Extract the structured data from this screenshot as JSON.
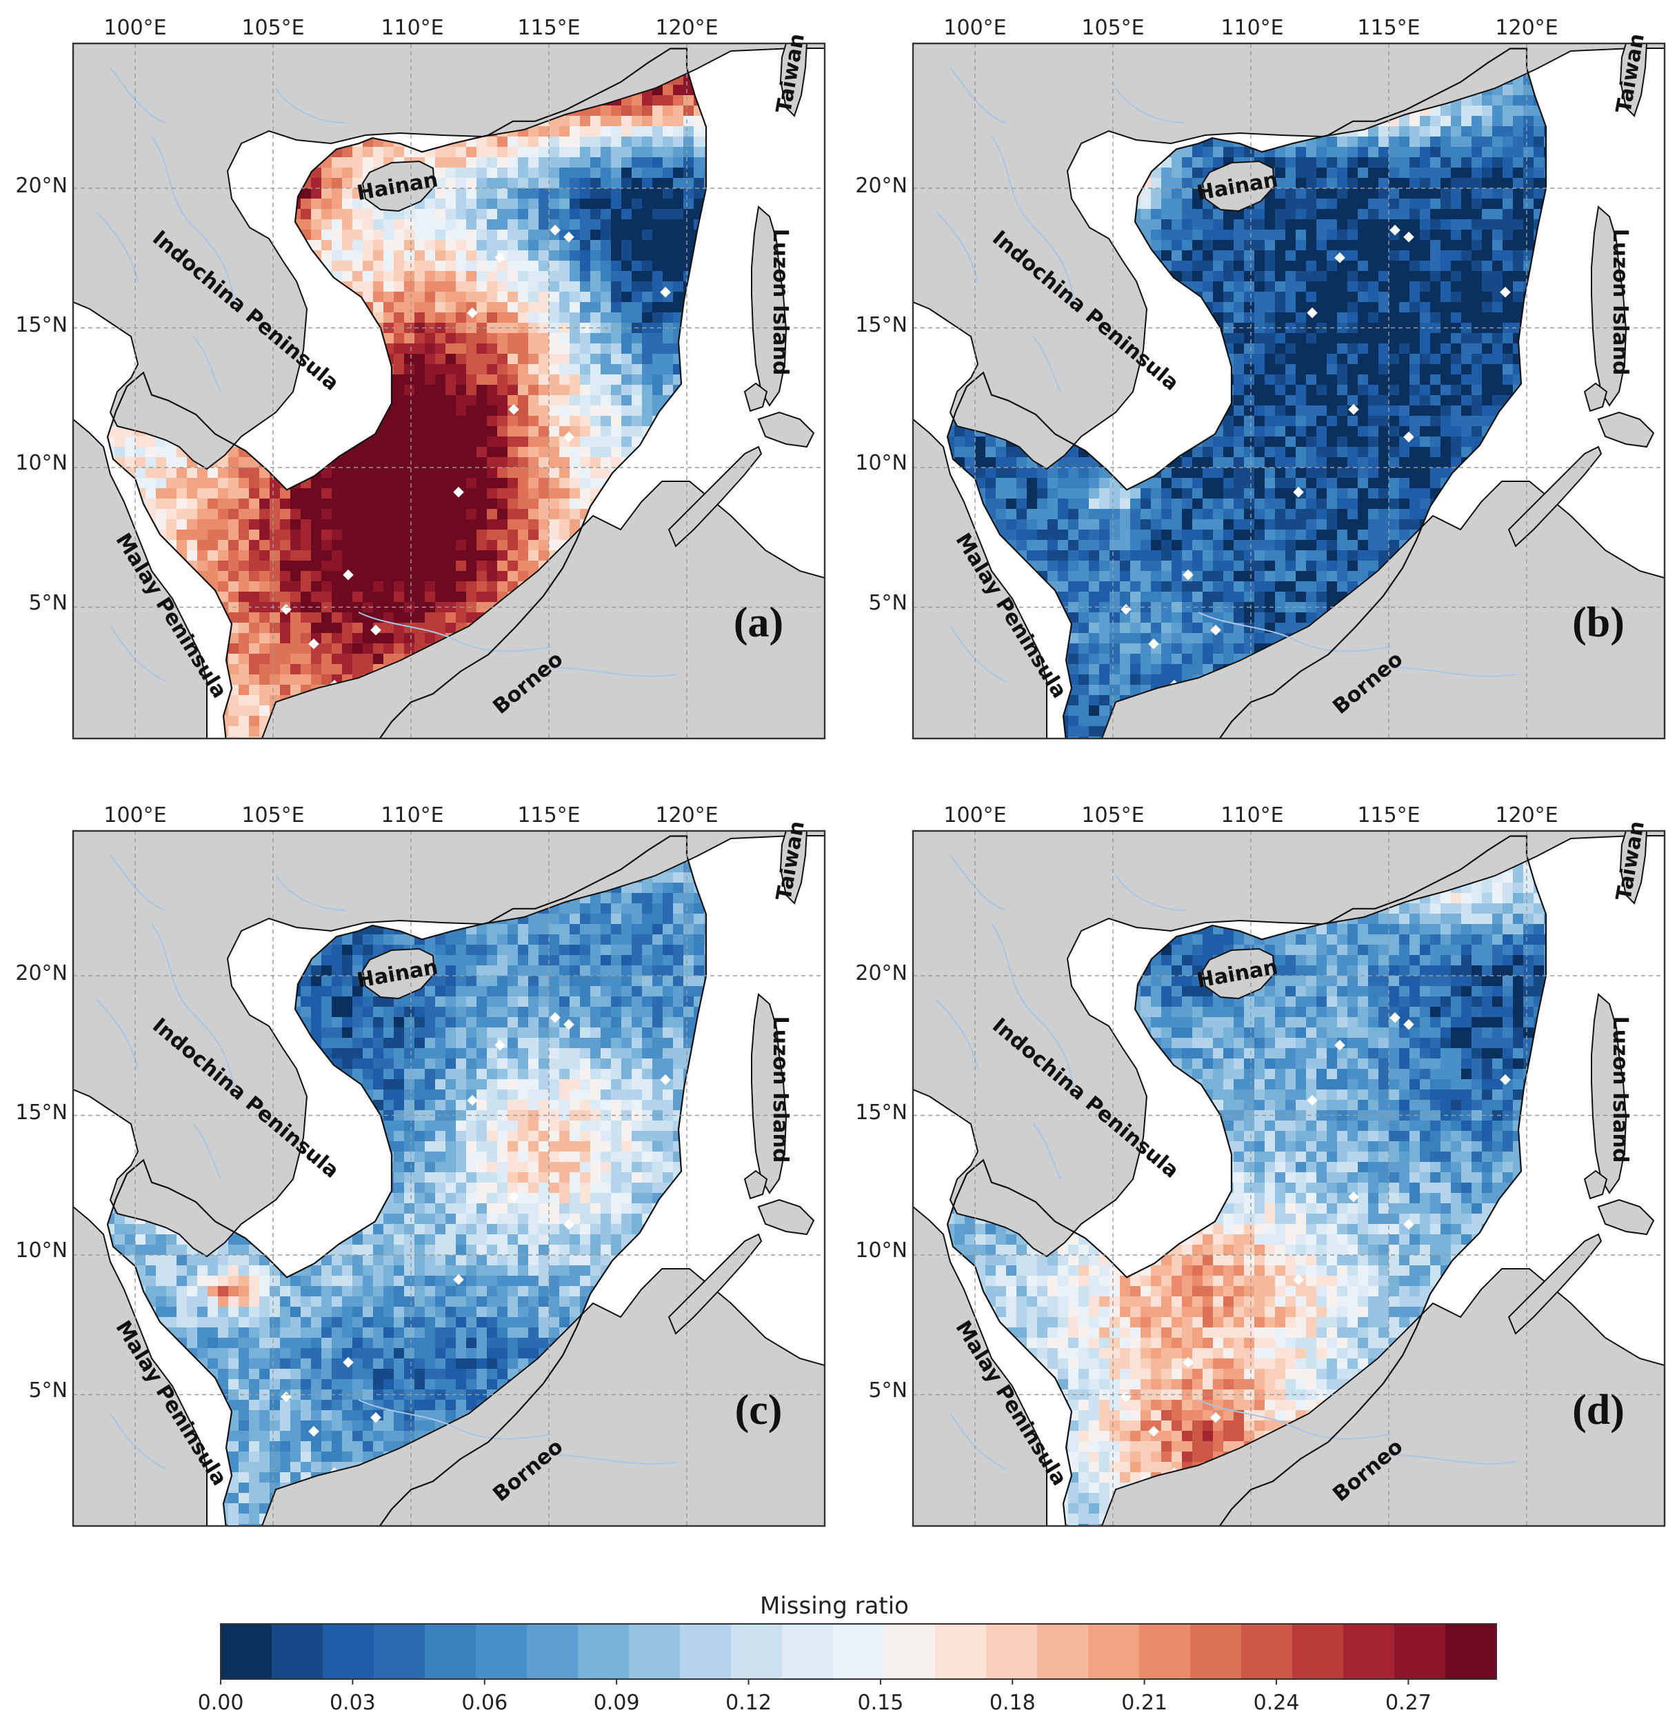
{
  "figure": {
    "panels": [
      {
        "label": "(a)",
        "pattern": "a"
      },
      {
        "label": "(b)",
        "pattern": "b"
      },
      {
        "label": "(c)",
        "pattern": "c"
      },
      {
        "label": "(d)",
        "pattern": "d"
      }
    ],
    "lon_ticks": [
      "100°E",
      "105°E",
      "110°E",
      "115°E",
      "120°E"
    ],
    "lat_ticks": [
      "20°N",
      "15°N",
      "10°N",
      "5°N"
    ],
    "regions": {
      "hainan": "Hainan",
      "taiwan": "Taiwan",
      "indochina": "Indochina Peninsula",
      "luzon": "Luzon Island",
      "malay": "Malay Peninsula",
      "borneo": "Borneo"
    },
    "colors": {
      "land": "#cfcfcf",
      "ocean_blank": "#ffffff",
      "rivers": "#a9c4e4",
      "grid": "#9a9a9a"
    }
  },
  "colorbar": {
    "title": "Missing ratio",
    "min": 0.0,
    "max": 0.29,
    "tick_labels": [
      "0.00",
      "0.03",
      "0.06",
      "0.09",
      "0.12",
      "0.15",
      "0.18",
      "0.21",
      "0.24",
      "0.27"
    ],
    "tick_values": [
      0.0,
      0.03,
      0.06,
      0.09,
      0.12,
      0.15,
      0.18,
      0.21,
      0.24,
      0.27
    ],
    "colors": [
      "#0a305f",
      "#164a87",
      "#1f5ea6",
      "#2b6cb0",
      "#3a7fbe",
      "#4b8fc7",
      "#5f9fcf",
      "#79b2d9",
      "#97c4e2",
      "#b3d4ea",
      "#cbe2f1",
      "#dcebf5",
      "#eaf2f8",
      "#f6f0ee",
      "#fbe3da",
      "#fbd0bb",
      "#f7b99c",
      "#f2a482",
      "#ea8c6b",
      "#dd7256",
      "#cc5746",
      "#b93c3b",
      "#a52431",
      "#8b1529",
      "#6d0a1f"
    ]
  }
}
